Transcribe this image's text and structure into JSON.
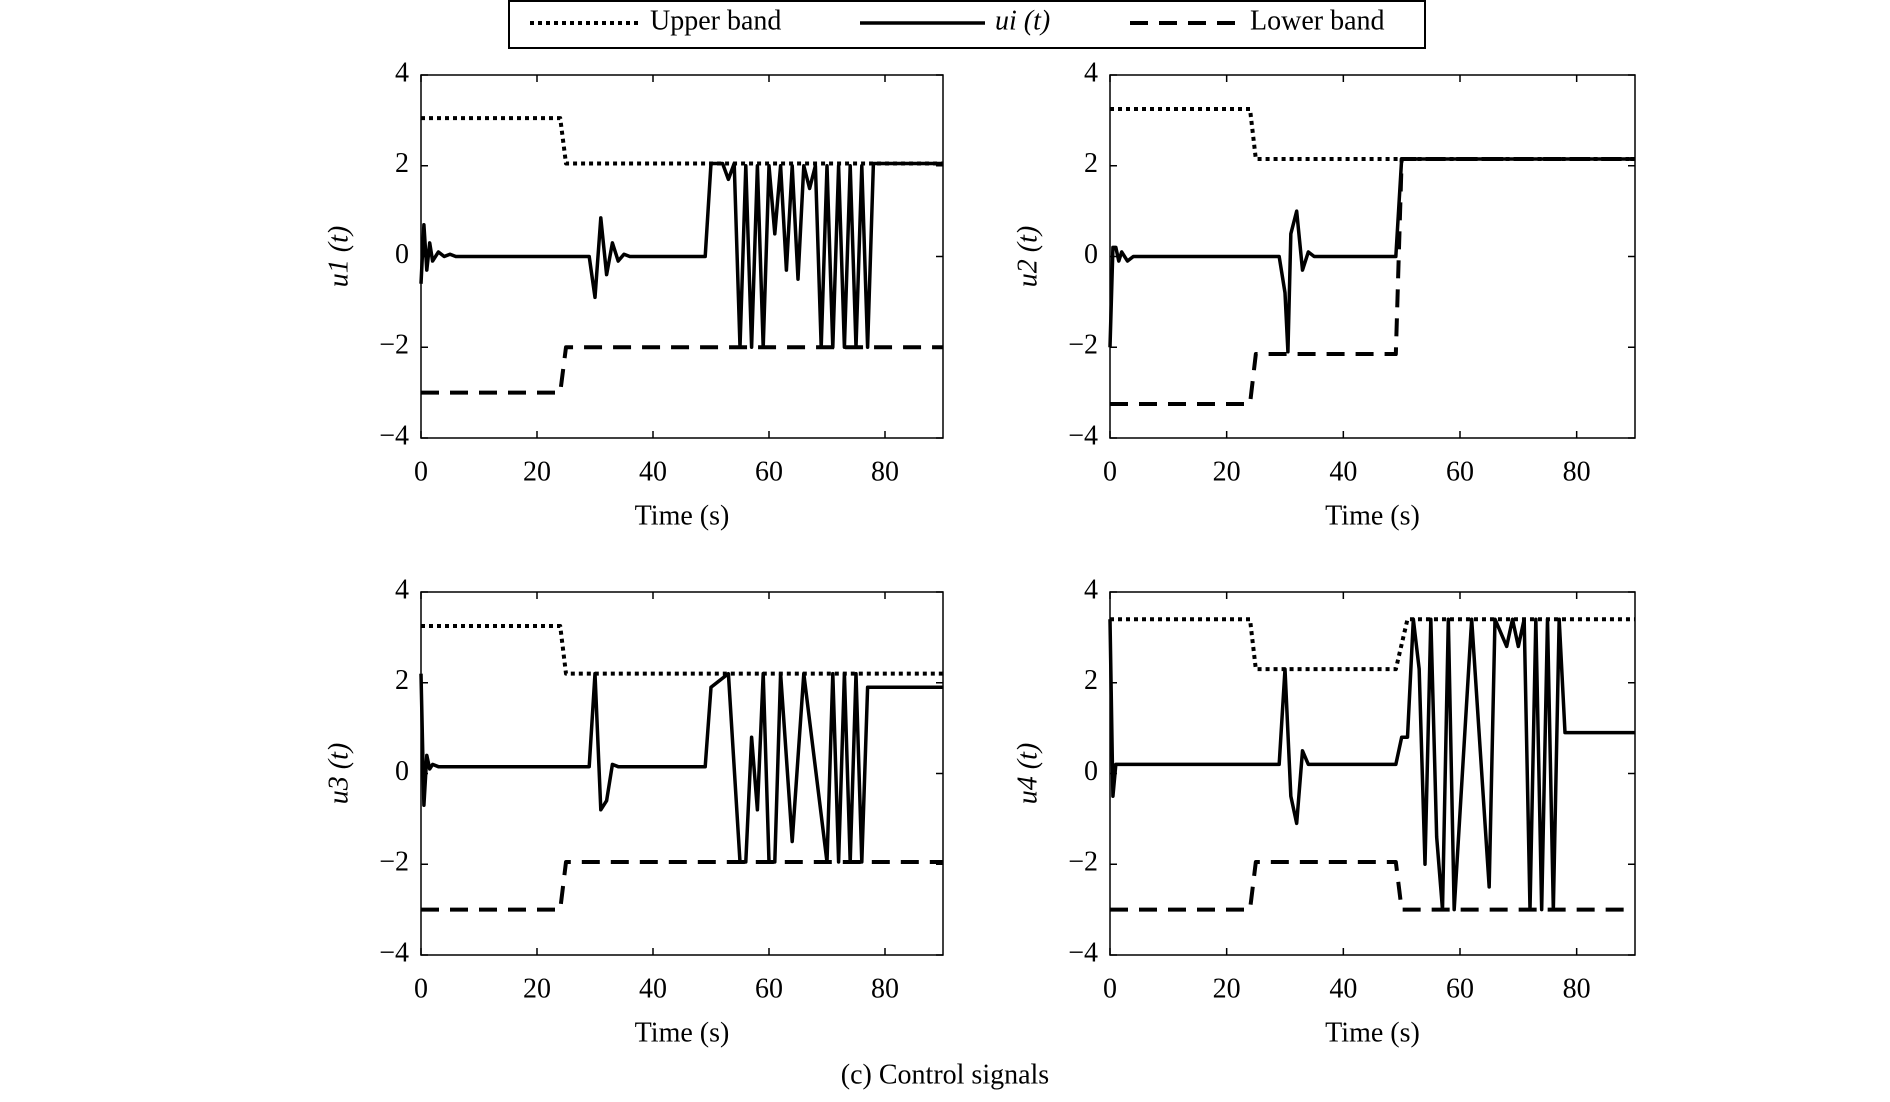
{
  "caption": "(c) Control signals",
  "chart_data": [
    {
      "type": "line",
      "xlabel": "Time (s)",
      "ylabel": "u1 (t)",
      "xlim": [
        0,
        90
      ],
      "xticks": [
        0,
        20,
        40,
        60,
        80
      ],
      "ylim": [
        -4,
        4
      ],
      "yticks": [
        {
          "value": -4,
          "label": "−4"
        },
        {
          "value": -2,
          "label": "−2"
        },
        0,
        2,
        4
      ],
      "series": [
        {
          "name": "Upper band",
          "color": "#000000",
          "style": "dotted",
          "x": [
            0,
            24,
            25,
            90
          ],
          "values": [
            3.05,
            3.05,
            2.05,
            2.05
          ]
        },
        {
          "name": "ui (t)",
          "color": "#000000",
          "style": "solid",
          "x": [
            0,
            0.5,
            1,
            1.5,
            2,
            3,
            4,
            5,
            6,
            29,
            30,
            31,
            32,
            33,
            34,
            35,
            36,
            49,
            50,
            52,
            53,
            54,
            55,
            56,
            57,
            58,
            59,
            60,
            61,
            62,
            63,
            64,
            65,
            66,
            67,
            68,
            69,
            70,
            71,
            72,
            73,
            74,
            75,
            76,
            77,
            78,
            90
          ],
          "values": [
            -0.6,
            0.7,
            -0.3,
            0.3,
            -0.1,
            0.1,
            0,
            0.05,
            0,
            0,
            -0.9,
            0.85,
            -0.4,
            0.3,
            -0.1,
            0.05,
            0,
            0,
            2.05,
            2.05,
            1.7,
            2.05,
            -2,
            2,
            -2,
            2,
            -2,
            2,
            0.5,
            2,
            -0.3,
            2,
            -0.5,
            2,
            1.5,
            2,
            -2,
            2,
            -2,
            2,
            -2,
            2,
            -2,
            2,
            -2,
            2.05,
            2.05
          ]
        },
        {
          "name": "Lower band",
          "color": "#000000",
          "style": "dashed",
          "x": [
            0,
            24,
            25,
            90
          ],
          "values": [
            -3,
            -3,
            -2,
            -2
          ]
        }
      ]
    },
    {
      "type": "line",
      "xlabel": "Time (s)",
      "ylabel": "u2 (t)",
      "xlim": [
        0,
        90
      ],
      "xticks": [
        0,
        20,
        40,
        60,
        80
      ],
      "ylim": [
        -4,
        4
      ],
      "yticks": [
        {
          "value": -4,
          "label": "−4"
        },
        {
          "value": -2,
          "label": "−2"
        },
        0,
        2,
        4
      ],
      "series": [
        {
          "color": "#000000",
          "style": "dotted",
          "x": [
            0,
            24,
            25,
            90
          ],
          "values": [
            3.25,
            3.25,
            2.15,
            2.15
          ]
        },
        {
          "color": "#000000",
          "style": "solid",
          "x": [
            0,
            0.5,
            1,
            1.5,
            2,
            3,
            4,
            5,
            29,
            30,
            30.5,
            31,
            32,
            33,
            34,
            35,
            49,
            50,
            90
          ],
          "values": [
            -2,
            0.2,
            0.2,
            -0.1,
            0.1,
            -0.1,
            0,
            0,
            0,
            -0.8,
            -2.1,
            0.5,
            1,
            -0.3,
            0.1,
            0,
            0,
            2.15,
            2.15
          ]
        },
        {
          "color": "#000000",
          "style": "dashed",
          "x": [
            0,
            24,
            25,
            49,
            50,
            90
          ],
          "values": [
            -3.25,
            -3.25,
            -2.15,
            -2.15,
            2.15,
            2.15
          ]
        }
      ]
    },
    {
      "type": "line",
      "xlabel": "Time (s)",
      "ylabel": "u3 (t)",
      "xlim": [
        0,
        90
      ],
      "xticks": [
        0,
        20,
        40,
        60,
        80
      ],
      "ylim": [
        -4,
        4
      ],
      "yticks": [
        {
          "value": -4,
          "label": "−4"
        },
        {
          "value": -2,
          "label": "−2"
        },
        0,
        2,
        4
      ],
      "series": [
        {
          "color": "#000000",
          "style": "dotted",
          "x": [
            0,
            24,
            25,
            90
          ],
          "values": [
            3.25,
            3.25,
            2.2,
            2.2
          ]
        },
        {
          "color": "#000000",
          "style": "solid",
          "x": [
            0,
            0.5,
            1,
            1.5,
            2,
            3,
            29,
            30,
            31,
            32,
            33,
            34,
            49,
            50,
            53,
            55,
            56,
            57,
            58,
            59,
            60,
            61,
            62,
            64,
            66,
            70,
            71,
            72,
            73,
            74,
            75,
            76,
            77,
            90
          ],
          "values": [
            2.2,
            -0.7,
            0.4,
            0.1,
            0.2,
            0.15,
            0.15,
            2.2,
            -0.8,
            -0.6,
            0.2,
            0.15,
            0.15,
            1.9,
            2.2,
            -1.95,
            -1.95,
            0.8,
            -0.8,
            2.2,
            -1.95,
            -1.95,
            2.2,
            -1.5,
            2.2,
            -1.95,
            2.2,
            -1.95,
            2.2,
            -1.95,
            2.2,
            -1.95,
            1.9,
            1.9
          ]
        },
        {
          "color": "#000000",
          "style": "dashed",
          "x": [
            0,
            24,
            25,
            90
          ],
          "values": [
            -3,
            -3,
            -1.95,
            -1.95
          ]
        }
      ]
    },
    {
      "type": "line",
      "xlabel": "Time (s)",
      "ylabel": "u4 (t)",
      "xlim": [
        0,
        90
      ],
      "xticks": [
        0,
        20,
        40,
        60,
        80
      ],
      "ylim": [
        -4,
        4
      ],
      "yticks": [
        {
          "value": -4,
          "label": "−4"
        },
        {
          "value": -2,
          "label": "−2"
        },
        0,
        2,
        4
      ],
      "series": [
        {
          "color": "#000000",
          "style": "dotted",
          "x": [
            0,
            24,
            25,
            49,
            51,
            90
          ],
          "values": [
            3.4,
            3.4,
            2.3,
            2.3,
            3.4,
            3.4
          ]
        },
        {
          "color": "#000000",
          "style": "solid",
          "x": [
            0,
            0.5,
            1,
            2,
            29,
            30,
            31,
            32,
            33,
            34,
            49,
            50,
            51,
            52,
            53,
            54,
            55,
            56,
            57,
            58,
            59,
            62,
            65,
            66,
            68,
            69,
            70,
            71,
            72,
            73,
            74,
            75,
            76,
            77,
            78,
            90
          ],
          "values": [
            3.4,
            -0.5,
            0.2,
            0.2,
            0.2,
            2.3,
            -0.5,
            -1.1,
            0.5,
            0.2,
            0.2,
            0.8,
            0.8,
            3.4,
            2.3,
            -2,
            3.4,
            -1.4,
            -3,
            3.4,
            -3,
            3.4,
            -2.5,
            3.4,
            2.8,
            3.4,
            2.8,
            3.4,
            -3,
            3.4,
            -3,
            3.4,
            -3,
            3.4,
            0.9,
            0.9
          ]
        },
        {
          "color": "#000000",
          "style": "dashed",
          "x": [
            0,
            24,
            25,
            49,
            50,
            90
          ],
          "values": [
            -3,
            -3,
            -1.95,
            -1.95,
            -3,
            -3
          ]
        }
      ]
    }
  ]
}
